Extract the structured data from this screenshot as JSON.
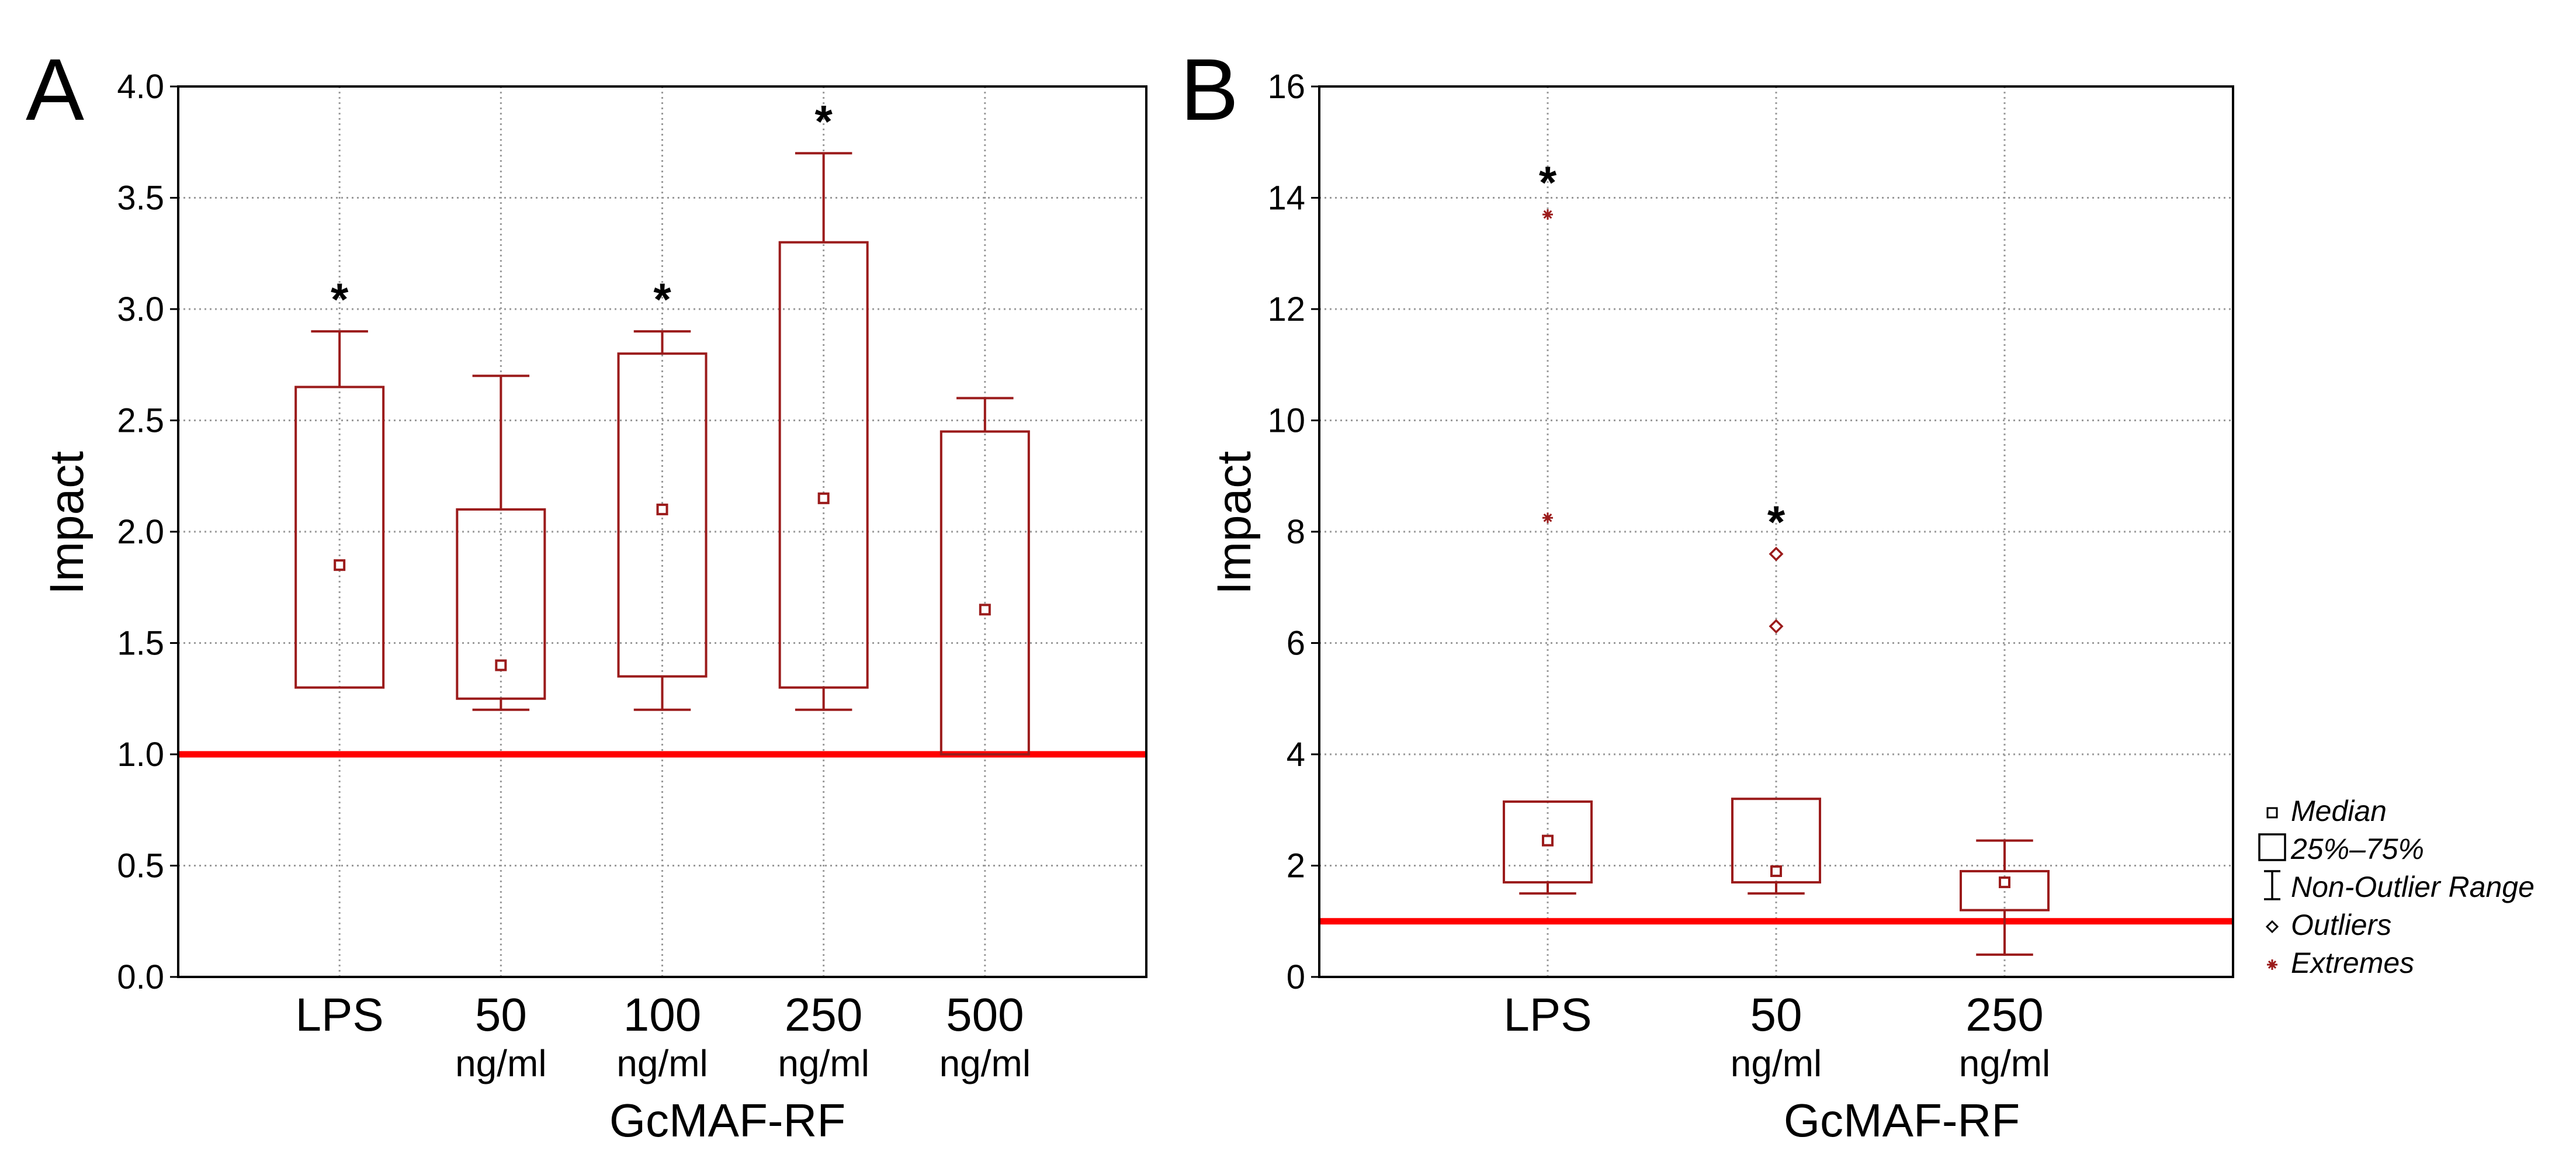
{
  "chart_data": [
    {
      "panel_label": "A",
      "type": "box",
      "ylabel": "Impact",
      "xlabel": "GcMAF-RF",
      "ylim": [
        0,
        4
      ],
      "yticks": [
        "0.0",
        "0.5",
        "1.0",
        "1.5",
        "2.0",
        "2.5",
        "3.0",
        "3.5",
        "4.0"
      ],
      "grid": true,
      "reference_line": 1.0,
      "reference_color": "#ff0000",
      "series_color": "#9b1b1b",
      "categories": [
        {
          "label": "LPS",
          "sublabel": "",
          "whisker_low": 1.3,
          "q1": 1.3,
          "median": 1.85,
          "q3": 2.65,
          "whisker_high": 2.9,
          "significant": true
        },
        {
          "label": "50",
          "sublabel": "ng/ml",
          "whisker_low": 1.2,
          "q1": 1.25,
          "median": 1.4,
          "q3": 2.1,
          "whisker_high": 2.7,
          "significant": false
        },
        {
          "label": "100",
          "sublabel": "ng/ml",
          "whisker_low": 1.2,
          "q1": 1.35,
          "median": 2.1,
          "q3": 2.8,
          "whisker_high": 2.9,
          "significant": true
        },
        {
          "label": "250",
          "sublabel": "ng/ml",
          "whisker_low": 1.2,
          "q1": 1.3,
          "median": 2.15,
          "q3": 3.3,
          "whisker_high": 3.7,
          "significant": true
        },
        {
          "label": "500",
          "sublabel": "ng/ml",
          "whisker_low": 1.0,
          "q1": 1.0,
          "median": 1.65,
          "q3": 2.45,
          "whisker_high": 2.6,
          "significant": false
        }
      ]
    },
    {
      "panel_label": "B",
      "type": "box",
      "ylabel": "Impact",
      "xlabel": "GcMAF-RF",
      "ylim": [
        0,
        16
      ],
      "yticks": [
        "0",
        "2",
        "4",
        "6",
        "8",
        "10",
        "12",
        "14",
        "16"
      ],
      "grid": true,
      "reference_line": 1.0,
      "reference_color": "#ff0000",
      "series_color": "#9b1b1b",
      "categories": [
        {
          "label": "LPS",
          "sublabel": "",
          "whisker_low": 1.5,
          "q1": 1.7,
          "median": 2.45,
          "q3": 3.15,
          "whisker_high": 3.15,
          "outliers": [],
          "extremes": [
            8.25,
            13.7
          ],
          "significant": true
        },
        {
          "label": "50",
          "sublabel": "ng/ml",
          "whisker_low": 1.5,
          "q1": 1.7,
          "median": 1.9,
          "q3": 3.2,
          "whisker_high": 3.2,
          "outliers": [
            6.3,
            7.6
          ],
          "extremes": [],
          "significant": true
        },
        {
          "label": "250",
          "sublabel": "ng/ml",
          "whisker_low": 0.4,
          "q1": 1.2,
          "median": 1.7,
          "q3": 1.9,
          "whisker_high": 2.45,
          "outliers": [],
          "extremes": [],
          "significant": false
        }
      ],
      "legend": {
        "position": "right",
        "items": [
          {
            "symbol": "median",
            "label": "Median"
          },
          {
            "symbol": "box",
            "label": "25%–75%"
          },
          {
            "symbol": "whisker",
            "label": "Non-Outlier Range"
          },
          {
            "symbol": "outlier",
            "label": "Outliers"
          },
          {
            "symbol": "extreme",
            "label": "Extremes"
          }
        ]
      }
    }
  ]
}
